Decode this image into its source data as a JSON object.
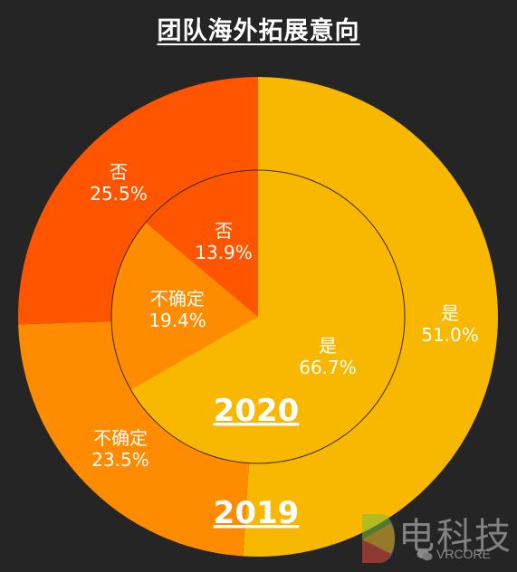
{
  "chart_data": {
    "type": "pie",
    "title": "团队海外拓展意向",
    "rings": [
      {
        "name": "2019",
        "ring": "outer",
        "slices": [
          {
            "label": "是",
            "pct_label": "51.0%",
            "value": 51.0,
            "color": "#F8B800"
          },
          {
            "label": "不确定",
            "pct_label": "23.5%",
            "value": 23.5,
            "color": "#FF8C00"
          },
          {
            "label": "否",
            "pct_label": "25.5%",
            "value": 25.5,
            "color": "#FF5500"
          }
        ]
      },
      {
        "name": "2020",
        "ring": "inner",
        "slices": [
          {
            "label": "是",
            "pct_label": "66.7%",
            "value": 66.7,
            "color": "#F8B800"
          },
          {
            "label": "不确定",
            "pct_label": "19.4%",
            "value": 19.4,
            "color": "#FF8C00"
          },
          {
            "label": "否",
            "pct_label": "13.9%",
            "value": 13.9,
            "color": "#FF5500"
          }
        ]
      }
    ],
    "background_color": "#252525",
    "text_color": "#FFFFFF"
  },
  "watermark": {
    "text": "电科技",
    "brand": "VRCORE"
  }
}
